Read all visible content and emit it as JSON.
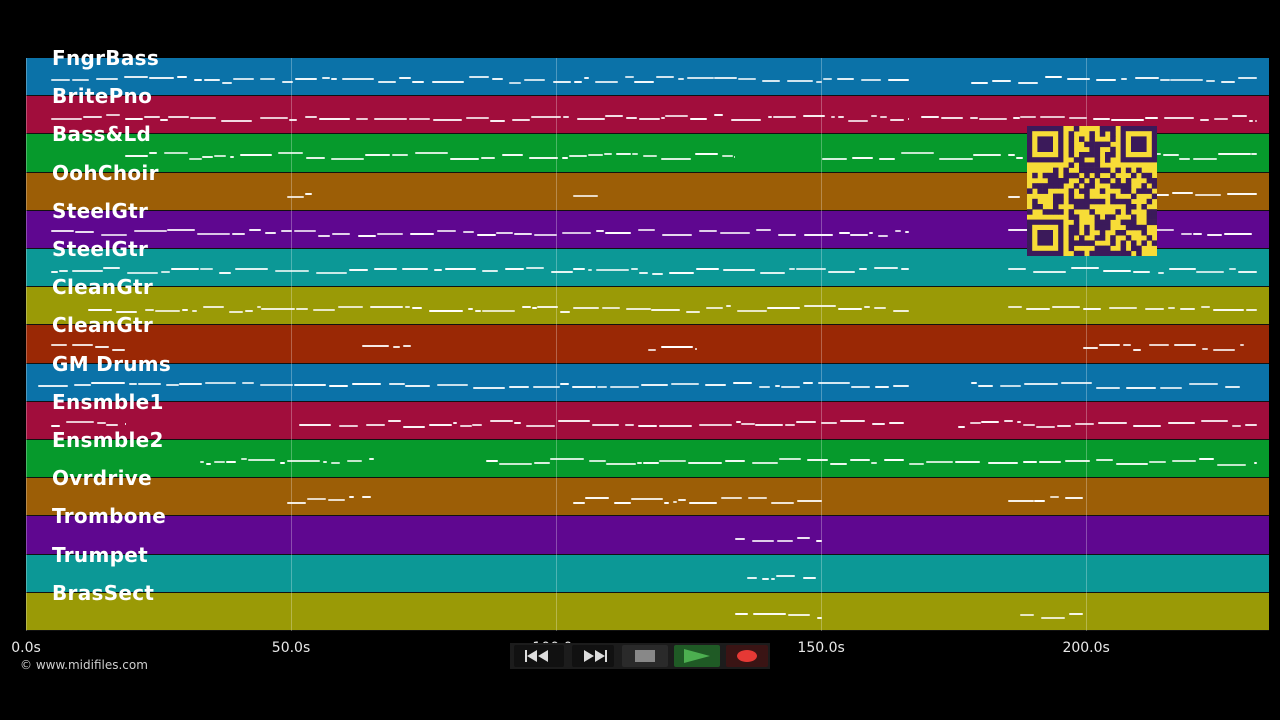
{
  "tracks": [
    {
      "label": "FngrBass",
      "color": "#0b72a8"
    },
    {
      "label": "BritePno",
      "color": "#a10d3c"
    },
    {
      "label": "Bass&Ld",
      "color": "#069a2c"
    },
    {
      "label": "OohChoir",
      "color": "#9c5e06"
    },
    {
      "label": "SteelGtr",
      "color": "#5f0790"
    },
    {
      "label": "SteelGtr",
      "color": "#0c9896"
    },
    {
      "label": "CleanGtr",
      "color": "#9a9a06"
    },
    {
      "label": "CleanGtr",
      "color": "#9a2805"
    },
    {
      "label": "GM Drums",
      "color": "#0b72a8"
    },
    {
      "label": "Ensmble1",
      "color": "#a10d3c"
    },
    {
      "label": "Ensmble2",
      "color": "#069a2c"
    },
    {
      "label": "Ovrdrive",
      "color": "#9c5e06"
    },
    {
      "label": "Trombone",
      "color": "#5f0790"
    },
    {
      "label": "Trumpet",
      "color": "#0c9896"
    },
    {
      "label": "BrasSect",
      "color": "#9a9a06"
    }
  ],
  "timeline": {
    "ticks": [
      "0.0s",
      "50.0s",
      "100.0s",
      "150.0s",
      "200.0s"
    ],
    "tick_values": [
      0,
      50,
      100,
      150,
      200
    ],
    "max_seconds": 234.5
  },
  "credit": "© www.midifiles.com",
  "transport": {
    "rewind_icon": "rewind-icon",
    "forward_icon": "fast-forward-icon",
    "stop_icon": "stop-icon",
    "play_icon": "play-icon",
    "record_icon": "record-icon"
  },
  "colors": {
    "background": "#000000",
    "qr_background": "#f7dc37",
    "qr_foreground": "#3b1a5a",
    "play_green": "#4caf50",
    "record_red": "#e53935"
  }
}
